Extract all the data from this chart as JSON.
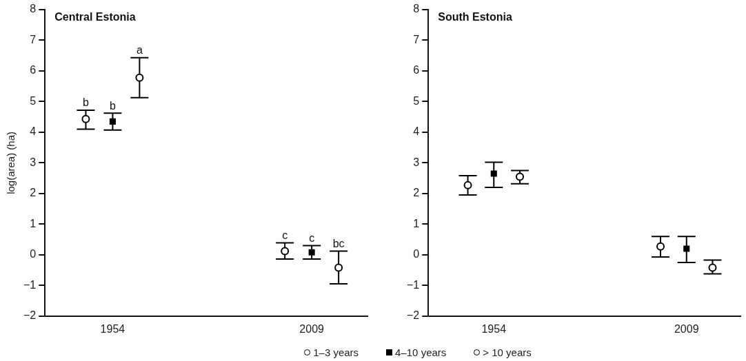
{
  "chart_data": [
    {
      "type": "scatter",
      "title": "Central Estonia",
      "ylabel": "log(area) (ha)",
      "categories": [
        "1954",
        "2009"
      ],
      "series": [
        {
          "name": "1–3 years",
          "color": "#000000",
          "marker": "circle",
          "values": [
            4.43,
            0.12
          ],
          "errors": [
            [
              4.1,
              4.72
            ],
            [
              -0.14,
              0.39
            ]
          ]
        },
        {
          "name": "4–10 years",
          "color": "#000000",
          "marker": "square",
          "values": [
            4.35,
            0.08
          ],
          "errors": [
            [
              4.07,
              4.62
            ],
            [
              -0.14,
              0.3
            ]
          ]
        },
        {
          "name": "> 10 years",
          "color": "#000000",
          "marker": "circle",
          "values": [
            5.78,
            -0.42
          ],
          "errors": [
            [
              5.13,
              6.43
            ],
            [
              -0.95,
              0.12
            ]
          ]
        }
      ],
      "ylim": [
        -2,
        8
      ],
      "yticks": [
        -2,
        -1,
        0,
        1,
        2,
        3,
        4,
        5,
        6,
        7,
        8
      ],
      "annotations": [
        "b",
        "b",
        "a",
        "c",
        "c",
        "bc"
      ],
      "legend": "bottom"
    },
    {
      "type": "scatter",
      "title": "South Estonia",
      "categories": [
        "1954",
        "2009"
      ],
      "series": [
        {
          "color": "#000000",
          "marker": "circle",
          "values": [
            2.27,
            0.27
          ],
          "errors": [
            [
              1.95,
              2.58
            ],
            [
              -0.07,
              0.6
            ]
          ]
        },
        {
          "color": "#000000",
          "marker": "square",
          "values": [
            2.65,
            0.2
          ],
          "errors": [
            [
              2.2,
              3.02
            ],
            [
              -0.25,
              0.6
            ]
          ]
        },
        {
          "color": "#000000",
          "marker": "circle",
          "values": [
            2.55,
            -0.42
          ],
          "errors": [
            [
              2.32,
              2.75
            ],
            [
              -0.62,
              -0.17
            ]
          ]
        }
      ],
      "ylim": [
        -2,
        8
      ],
      "yticks": [
        -2,
        -1,
        0,
        1,
        2,
        3,
        4,
        5,
        6,
        7,
        8
      ]
    }
  ]
}
